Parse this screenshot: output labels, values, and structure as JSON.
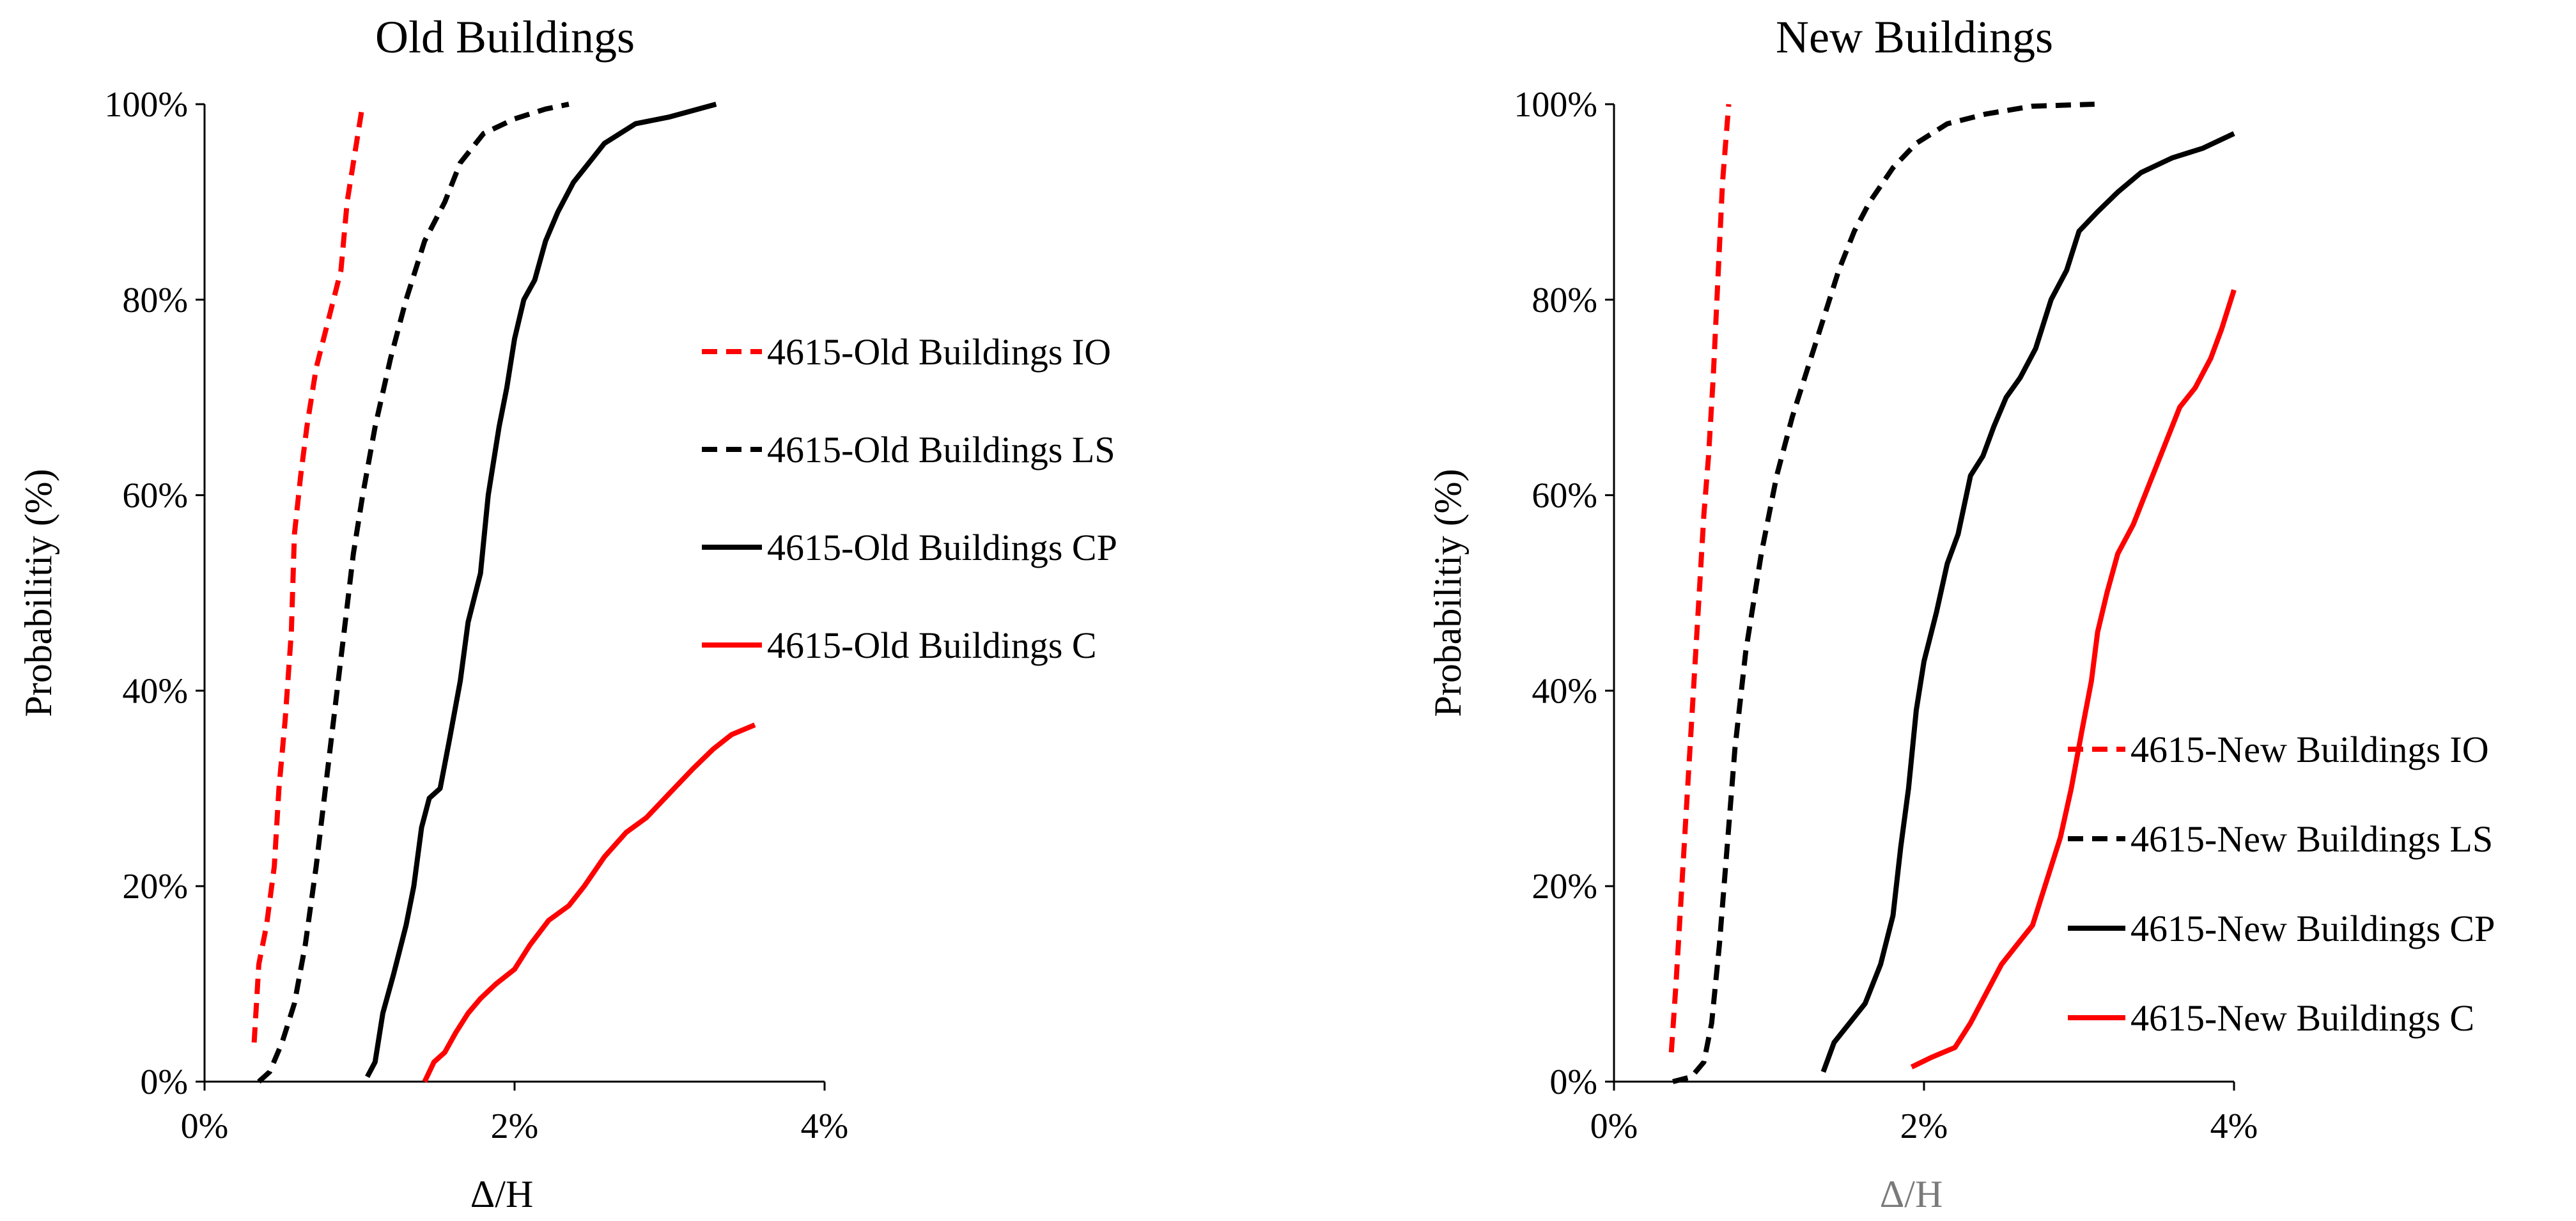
{
  "chart_data": [
    {
      "type": "line",
      "title": "Old Buildings",
      "xlabel": "Δ/H",
      "ylabel": "Probabilitiy (%)",
      "xlim": [
        0,
        4
      ],
      "ylim": [
        0,
        100
      ],
      "xticks": [
        "0%",
        "2%",
        "4%"
      ],
      "yticks": [
        "0%",
        "20%",
        "40%",
        "60%",
        "80%",
        "100%"
      ],
      "legend_position": "middle-right",
      "series": [
        {
          "name": "4615-Old Buildings IO",
          "color": "#ff0000",
          "dash": "dashed",
          "points": [
            [
              0.32,
              4
            ],
            [
              0.35,
              12
            ],
            [
              0.4,
              16
            ],
            [
              0.45,
              22
            ],
            [
              0.48,
              30
            ],
            [
              0.52,
              37
            ],
            [
              0.56,
              46
            ],
            [
              0.58,
              56
            ],
            [
              0.62,
              62
            ],
            [
              0.66,
              67
            ],
            [
              0.72,
              73
            ],
            [
              0.8,
              78
            ],
            [
              0.88,
              83
            ],
            [
              0.92,
              90
            ],
            [
              0.97,
              95
            ],
            [
              1.02,
              100
            ]
          ]
        },
        {
          "name": "4615-Old Buildings LS",
          "color": "#000000",
          "dash": "dashed",
          "points": [
            [
              0.35,
              0
            ],
            [
              0.42,
              1
            ],
            [
              0.5,
              4
            ],
            [
              0.58,
              8
            ],
            [
              0.65,
              14
            ],
            [
              0.72,
              22
            ],
            [
              0.78,
              30
            ],
            [
              0.84,
              38
            ],
            [
              0.9,
              46
            ],
            [
              0.96,
              54
            ],
            [
              1.02,
              60
            ],
            [
              1.1,
              67
            ],
            [
              1.2,
              74
            ],
            [
              1.3,
              80
            ],
            [
              1.42,
              86
            ],
            [
              1.55,
              90
            ],
            [
              1.65,
              94
            ],
            [
              1.8,
              97
            ],
            [
              2.0,
              98.5
            ],
            [
              2.2,
              99.5
            ],
            [
              2.35,
              100
            ]
          ]
        },
        {
          "name": "4615-Old Buildings CP",
          "color": "#000000",
          "dash": "solid",
          "points": [
            [
              1.05,
              0.5
            ],
            [
              1.1,
              2
            ],
            [
              1.15,
              7
            ],
            [
              1.22,
              11
            ],
            [
              1.3,
              16
            ],
            [
              1.35,
              20
            ],
            [
              1.4,
              26
            ],
            [
              1.45,
              29
            ],
            [
              1.52,
              30
            ],
            [
              1.58,
              35
            ],
            [
              1.65,
              41
            ],
            [
              1.7,
              47
            ],
            [
              1.78,
              52
            ],
            [
              1.83,
              60
            ],
            [
              1.9,
              67
            ],
            [
              1.95,
              71
            ],
            [
              2.0,
              76
            ],
            [
              2.06,
              80
            ],
            [
              2.13,
              82
            ],
            [
              2.2,
              86
            ],
            [
              2.28,
              89
            ],
            [
              2.38,
              92
            ],
            [
              2.48,
              94
            ],
            [
              2.58,
              96
            ],
            [
              2.78,
              98
            ],
            [
              3.0,
              98.7
            ],
            [
              3.3,
              100
            ]
          ]
        },
        {
          "name": "4615-Old Buildings C",
          "color": "#ff0000",
          "dash": "solid",
          "points": [
            [
              1.42,
              0
            ],
            [
              1.48,
              2
            ],
            [
              1.55,
              3
            ],
            [
              1.62,
              5
            ],
            [
              1.7,
              7
            ],
            [
              1.78,
              8.5
            ],
            [
              1.88,
              10
            ],
            [
              2.0,
              11.5
            ],
            [
              2.1,
              14
            ],
            [
              2.22,
              16.5
            ],
            [
              2.35,
              18
            ],
            [
              2.45,
              20
            ],
            [
              2.58,
              23
            ],
            [
              2.72,
              25.5
            ],
            [
              2.85,
              27
            ],
            [
              3.0,
              29.5
            ],
            [
              3.15,
              32
            ],
            [
              3.28,
              34
            ],
            [
              3.4,
              35.5
            ],
            [
              3.55,
              36.5
            ]
          ]
        }
      ]
    },
    {
      "type": "line",
      "title": "New Buildings",
      "xlabel": "Δ/H",
      "ylabel": "Probabilitiy (%)",
      "xlim": [
        0,
        4
      ],
      "ylim": [
        0,
        100
      ],
      "xticks": [
        "0%",
        "2%",
        "4%"
      ],
      "yticks": [
        "0%",
        "20%",
        "40%",
        "60%",
        "80%",
        "100%"
      ],
      "legend_position": "bottom-right",
      "series": [
        {
          "name": "4615-New Buildings IO",
          "color": "#ff0000",
          "dash": "dashed",
          "points": [
            [
              0.37,
              3
            ],
            [
              0.4,
              10
            ],
            [
              0.43,
              18
            ],
            [
              0.46,
              26
            ],
            [
              0.49,
              34
            ],
            [
              0.52,
              42
            ],
            [
              0.55,
              50
            ],
            [
              0.58,
              58
            ],
            [
              0.61,
              64
            ],
            [
              0.64,
              72
            ],
            [
              0.67,
              82
            ],
            [
              0.7,
              92
            ],
            [
              0.72,
              96
            ],
            [
              0.74,
              100
            ]
          ]
        },
        {
          "name": "4615-New Buildings LS",
          "color": "#000000",
          "dash": "dashed",
          "points": [
            [
              0.38,
              0
            ],
            [
              0.5,
              0.5
            ],
            [
              0.58,
              2
            ],
            [
              0.63,
              6
            ],
            [
              0.68,
              14
            ],
            [
              0.73,
              24
            ],
            [
              0.78,
              34
            ],
            [
              0.85,
              44
            ],
            [
              0.95,
              54
            ],
            [
              1.05,
              62
            ],
            [
              1.15,
              68
            ],
            [
              1.25,
              73
            ],
            [
              1.35,
              78
            ],
            [
              1.45,
              83
            ],
            [
              1.55,
              87
            ],
            [
              1.65,
              90
            ],
            [
              1.8,
              93.5
            ],
            [
              1.95,
              96
            ],
            [
              2.15,
              98
            ],
            [
              2.4,
              99
            ],
            [
              2.7,
              99.8
            ],
            [
              3.1,
              100
            ]
          ]
        },
        {
          "name": "4615-New Buildings CP",
          "color": "#000000",
          "dash": "solid",
          "points": [
            [
              1.35,
              1
            ],
            [
              1.42,
              4
            ],
            [
              1.52,
              6
            ],
            [
              1.62,
              8
            ],
            [
              1.72,
              12
            ],
            [
              1.8,
              17
            ],
            [
              1.85,
              24
            ],
            [
              1.9,
              30
            ],
            [
              1.95,
              38
            ],
            [
              2.0,
              43
            ],
            [
              2.08,
              48
            ],
            [
              2.15,
              53
            ],
            [
              2.22,
              56
            ],
            [
              2.3,
              62
            ],
            [
              2.38,
              64
            ],
            [
              2.45,
              67
            ],
            [
              2.53,
              70
            ],
            [
              2.62,
              72
            ],
            [
              2.72,
              75
            ],
            [
              2.82,
              80
            ],
            [
              2.92,
              83
            ],
            [
              3.0,
              87
            ],
            [
              3.12,
              89
            ],
            [
              3.25,
              91
            ],
            [
              3.4,
              93
            ],
            [
              3.6,
              94.5
            ],
            [
              3.8,
              95.5
            ],
            [
              4.0,
              97
            ]
          ]
        },
        {
          "name": "4615-New Buildings C",
          "color": "#ff0000",
          "dash": "solid",
          "points": [
            [
              1.92,
              1.5
            ],
            [
              2.05,
              2.5
            ],
            [
              2.2,
              3.5
            ],
            [
              2.3,
              6
            ],
            [
              2.4,
              9
            ],
            [
              2.5,
              12
            ],
            [
              2.6,
              14
            ],
            [
              2.7,
              16
            ],
            [
              2.78,
              20
            ],
            [
              2.88,
              25
            ],
            [
              2.95,
              30
            ],
            [
              3.02,
              36
            ],
            [
              3.08,
              41
            ],
            [
              3.12,
              46
            ],
            [
              3.18,
              50
            ],
            [
              3.25,
              54
            ],
            [
              3.35,
              57
            ],
            [
              3.45,
              61
            ],
            [
              3.55,
              65
            ],
            [
              3.65,
              69
            ],
            [
              3.75,
              71
            ],
            [
              3.85,
              74
            ],
            [
              3.92,
              77
            ],
            [
              4.0,
              81
            ]
          ]
        }
      ]
    }
  ]
}
